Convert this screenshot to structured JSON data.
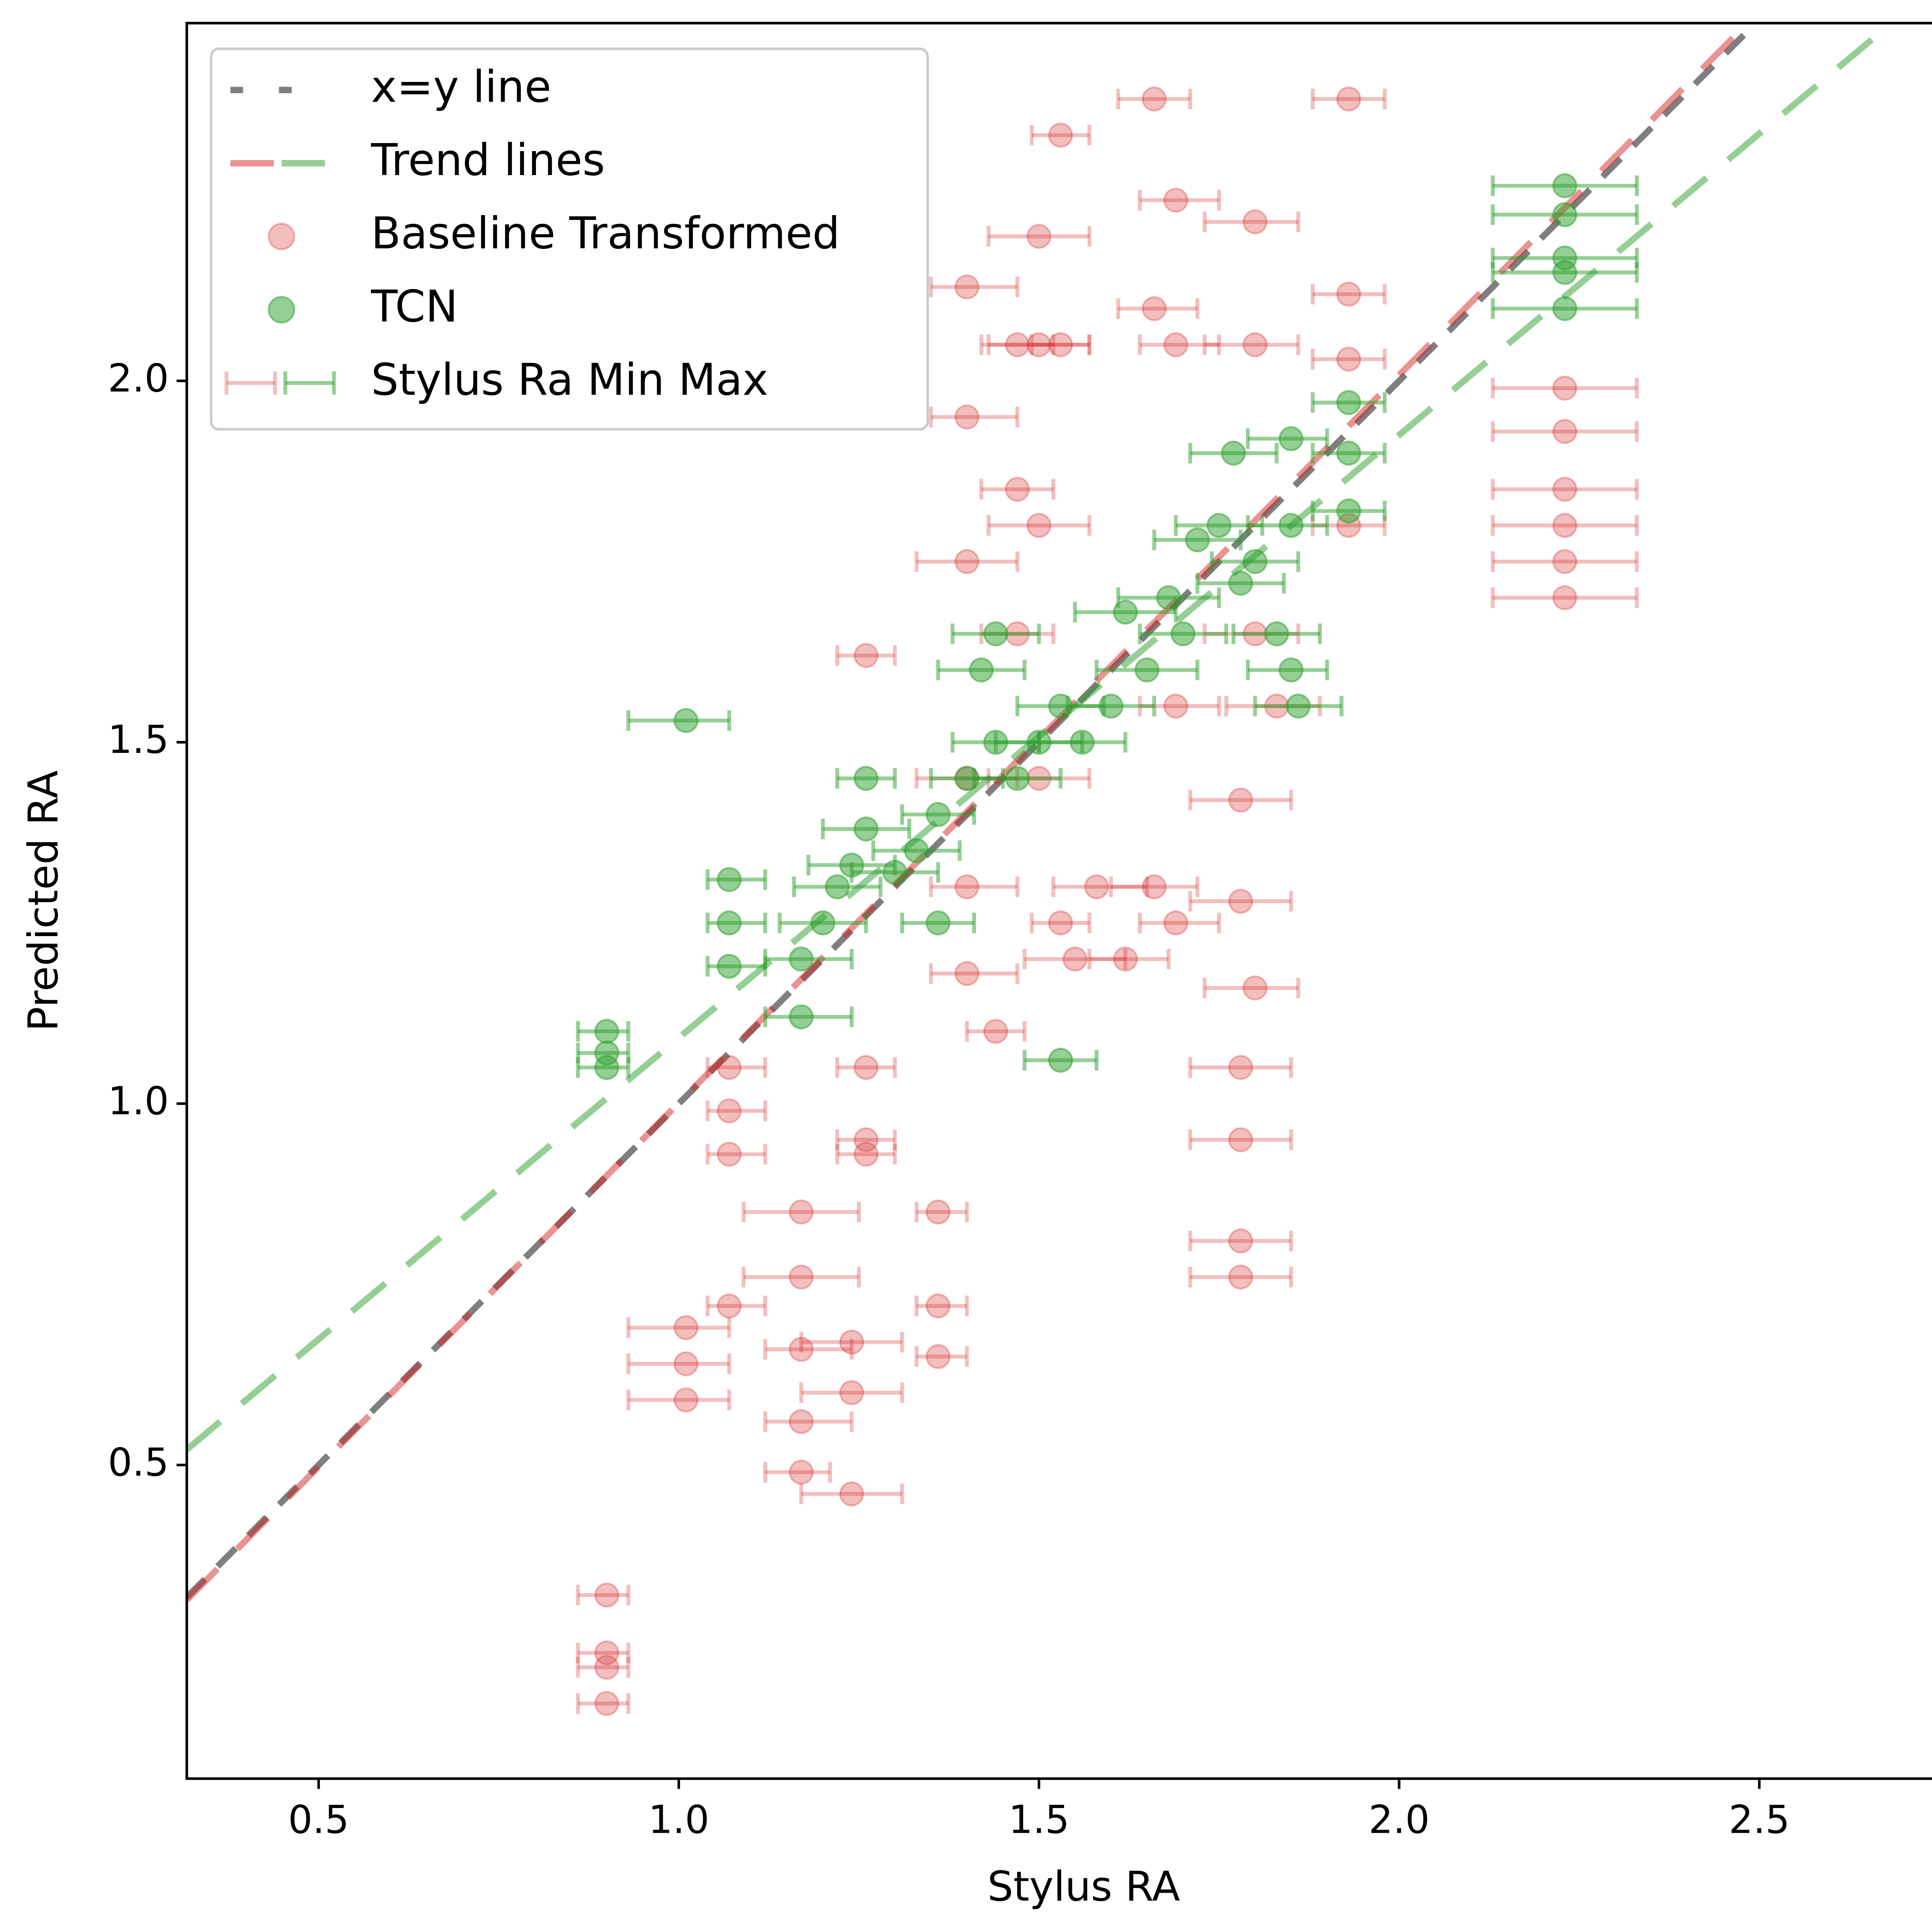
{
  "chart_data": {
    "type": "scatter",
    "xlabel": "Stylus RA",
    "ylabel": "Predicted RA",
    "xlim": [
      0.317,
      2.809
    ],
    "ylim": [
      0.066,
      2.495
    ],
    "xticks": [
      {
        "value": 0.5,
        "label": "0.5"
      },
      {
        "value": 1.0,
        "label": "1.0"
      },
      {
        "value": 1.5,
        "label": "1.5"
      },
      {
        "value": 2.0,
        "label": "2.0"
      },
      {
        "value": 2.5,
        "label": "2.5"
      }
    ],
    "yticks": [
      {
        "value": 0.5,
        "label": "0.5"
      },
      {
        "value": 1.0,
        "label": "1.0"
      },
      {
        "value": 1.5,
        "label": "1.5"
      },
      {
        "value": 2.0,
        "label": "2.0"
      }
    ],
    "legend": "upper left",
    "lines": [
      {
        "name": "x=y line",
        "segments": [
          {
            "color": "#7f7f7f",
            "slope": 1,
            "intercept": 0
          }
        ]
      },
      {
        "name": "Trend lines",
        "segments": [
          {
            "color": "#d62728",
            "slope": 1.007,
            "intercept": -0.006
          },
          {
            "color": "#2ca02c",
            "slope": 0.834,
            "intercept": 0.257
          }
        ]
      }
    ],
    "error_bar_label": "Stylus Ra Min Max",
    "series": [
      {
        "name": "Baseline Transformed",
        "color": "#d62728",
        "opacity": 0.3,
        "x": [
          0.9,
          0.9,
          0.9,
          0.9,
          1.01,
          1.01,
          1.01,
          1.07,
          1.07,
          1.07,
          1.07,
          1.17,
          1.17,
          1.17,
          1.17,
          1.17,
          1.24,
          1.24,
          1.24,
          1.26,
          1.26,
          1.26,
          1.26,
          1.36,
          1.36,
          1.36,
          1.4,
          1.4,
          1.4,
          1.4,
          1.4,
          1.4,
          1.44,
          1.47,
          1.47,
          1.47,
          1.5,
          1.5,
          1.5,
          1.5,
          1.53,
          1.53,
          1.53,
          1.55,
          1.58,
          1.62,
          1.66,
          1.66,
          1.66,
          1.69,
          1.69,
          1.69,
          1.69,
          1.78,
          1.78,
          1.78,
          1.78,
          1.78,
          1.78,
          1.8,
          1.8,
          1.8,
          1.8,
          1.83,
          1.93,
          1.93,
          1.93,
          1.93,
          2.23,
          2.23,
          2.23,
          2.23,
          2.23,
          2.23
        ],
        "values": [
          0.32,
          0.24,
          0.22,
          0.17,
          0.69,
          0.64,
          0.59,
          1.05,
          0.99,
          0.93,
          0.72,
          0.85,
          0.76,
          0.66,
          0.56,
          0.49,
          0.67,
          0.6,
          0.46,
          1.62,
          1.05,
          0.95,
          0.93,
          0.85,
          0.72,
          0.65,
          2.13,
          1.95,
          1.75,
          1.45,
          1.3,
          1.18,
          1.1,
          2.05,
          1.85,
          1.65,
          2.2,
          2.05,
          1.8,
          1.45,
          2.34,
          2.05,
          1.25,
          1.2,
          1.3,
          1.2,
          2.39,
          2.1,
          1.3,
          2.25,
          2.05,
          1.55,
          1.25,
          1.05,
          0.95,
          0.81,
          0.76,
          1.42,
          1.28,
          2.22,
          2.05,
          1.65,
          1.16,
          1.55,
          2.39,
          2.12,
          2.03,
          1.8,
          1.99,
          1.93,
          1.85,
          1.8,
          1.75,
          1.7
        ],
        "xmin": [
          0.86,
          0.86,
          0.86,
          0.86,
          0.93,
          0.93,
          0.93,
          1.04,
          1.04,
          1.04,
          1.04,
          1.09,
          1.09,
          1.12,
          1.12,
          1.12,
          1.17,
          1.17,
          1.17,
          1.22,
          1.22,
          1.22,
          1.22,
          1.33,
          1.33,
          1.33,
          1.35,
          1.35,
          1.33,
          1.33,
          1.35,
          1.35,
          1.4,
          1.42,
          1.42,
          1.42,
          1.43,
          1.43,
          1.43,
          1.43,
          1.49,
          1.49,
          1.49,
          1.48,
          1.52,
          1.57,
          1.61,
          1.61,
          1.6,
          1.64,
          1.64,
          1.64,
          1.64,
          1.71,
          1.71,
          1.71,
          1.71,
          1.71,
          1.71,
          1.73,
          1.73,
          1.73,
          1.73,
          1.76,
          1.88,
          1.88,
          1.88,
          1.88,
          2.13,
          2.13,
          2.13,
          2.13,
          2.13,
          2.13
        ],
        "xmax": [
          0.93,
          0.93,
          0.93,
          0.93,
          1.07,
          1.07,
          1.07,
          1.12,
          1.12,
          1.12,
          1.12,
          1.25,
          1.25,
          1.24,
          1.24,
          1.21,
          1.31,
          1.31,
          1.31,
          1.3,
          1.3,
          1.3,
          1.3,
          1.4,
          1.4,
          1.4,
          1.47,
          1.47,
          1.47,
          1.47,
          1.47,
          1.47,
          1.48,
          1.52,
          1.52,
          1.52,
          1.57,
          1.57,
          1.57,
          1.57,
          1.57,
          1.57,
          1.57,
          1.62,
          1.65,
          1.68,
          1.71,
          1.72,
          1.72,
          1.75,
          1.75,
          1.75,
          1.75,
          1.85,
          1.85,
          1.85,
          1.85,
          1.85,
          1.85,
          1.86,
          1.86,
          1.86,
          1.86,
          1.89,
          1.98,
          1.98,
          1.98,
          1.98,
          2.33,
          2.33,
          2.33,
          2.33,
          2.33,
          2.33
        ]
      },
      {
        "name": "TCN",
        "color": "#2ca02c",
        "opacity": 0.5,
        "x": [
          0.9,
          0.9,
          0.9,
          1.01,
          1.07,
          1.07,
          1.07,
          1.17,
          1.17,
          1.2,
          1.22,
          1.24,
          1.26,
          1.26,
          1.3,
          1.33,
          1.36,
          1.36,
          1.4,
          1.42,
          1.44,
          1.44,
          1.47,
          1.5,
          1.53,
          1.53,
          1.56,
          1.6,
          1.62,
          1.65,
          1.68,
          1.7,
          1.72,
          1.75,
          1.77,
          1.78,
          1.8,
          1.83,
          1.85,
          1.85,
          1.85,
          1.86,
          1.93,
          1.93,
          1.93,
          2.23,
          2.23,
          2.23,
          2.23,
          2.23
        ],
        "values": [
          1.1,
          1.07,
          1.05,
          1.53,
          1.31,
          1.25,
          1.19,
          1.12,
          1.2,
          1.25,
          1.3,
          1.33,
          1.38,
          1.45,
          1.32,
          1.35,
          1.25,
          1.4,
          1.45,
          1.6,
          1.65,
          1.5,
          1.45,
          1.5,
          1.55,
          1.06,
          1.5,
          1.55,
          1.68,
          1.6,
          1.7,
          1.65,
          1.78,
          1.8,
          1.9,
          1.72,
          1.75,
          1.65,
          1.92,
          1.8,
          1.6,
          1.55,
          1.97,
          1.9,
          1.82,
          2.27,
          2.23,
          2.17,
          2.15,
          2.1
        ],
        "xmin": [
          0.86,
          0.86,
          0.86,
          0.93,
          1.04,
          1.04,
          1.04,
          1.12,
          1.12,
          1.14,
          1.16,
          1.18,
          1.2,
          1.22,
          1.24,
          1.27,
          1.31,
          1.31,
          1.35,
          1.36,
          1.38,
          1.38,
          1.41,
          1.44,
          1.47,
          1.48,
          1.5,
          1.54,
          1.55,
          1.58,
          1.61,
          1.64,
          1.66,
          1.69,
          1.71,
          1.72,
          1.74,
          1.77,
          1.79,
          1.79,
          1.79,
          1.8,
          1.88,
          1.88,
          1.88,
          2.13,
          2.13,
          2.13,
          2.13,
          2.13
        ],
        "xmax": [
          0.93,
          0.93,
          0.93,
          1.07,
          1.12,
          1.12,
          1.12,
          1.24,
          1.24,
          1.26,
          1.28,
          1.3,
          1.32,
          1.3,
          1.36,
          1.39,
          1.41,
          1.41,
          1.45,
          1.48,
          1.5,
          1.5,
          1.53,
          1.56,
          1.59,
          1.58,
          1.62,
          1.66,
          1.69,
          1.72,
          1.75,
          1.76,
          1.78,
          1.81,
          1.83,
          1.84,
          1.86,
          1.89,
          1.9,
          1.9,
          1.9,
          1.92,
          1.98,
          1.98,
          1.98,
          2.33,
          2.33,
          2.33,
          2.33,
          2.33
        ]
      }
    ]
  }
}
